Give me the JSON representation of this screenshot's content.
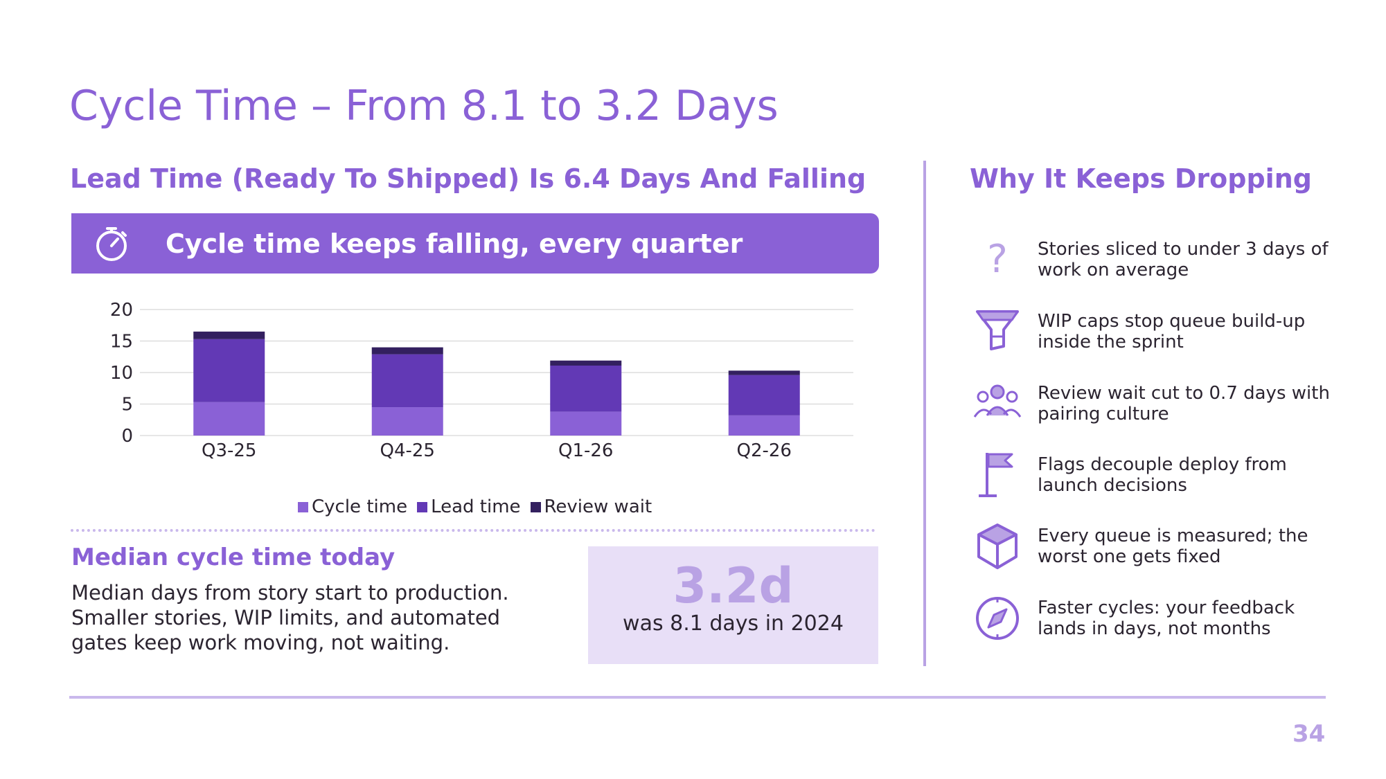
{
  "slide": {
    "title": "Cycle Time – From 8.1 to 3.2 Days",
    "page_number": "34"
  },
  "left": {
    "heading": "Lead Time (Ready To Shipped) Is 6.4 Days And Falling",
    "banner": {
      "icon": "stopwatch-icon",
      "text": "Cycle time keeps falling, every quarter"
    }
  },
  "chart_data": {
    "type": "bar",
    "stacked": true,
    "categories": [
      "Q3-25",
      "Q4-25",
      "Q1-26",
      "Q2-26"
    ],
    "series": [
      {
        "name": "Cycle time",
        "values": [
          5.3,
          4.5,
          3.8,
          3.2
        ],
        "color": "#8a61d6"
      },
      {
        "name": "Lead time",
        "values": [
          10.0,
          8.4,
          7.3,
          6.4
        ],
        "color": "#6239b5"
      },
      {
        "name": "Review wait",
        "values": [
          1.2,
          1.1,
          0.8,
          0.7
        ],
        "color": "#33205f"
      }
    ],
    "yticks": [
      0,
      5,
      10,
      15,
      20
    ],
    "ylim": [
      0,
      20
    ],
    "grid": true,
    "legend": "bottom"
  },
  "median": {
    "heading": "Median cycle time today",
    "description": "Median days from story start to production. Smaller stories, WIP limits, and automated gates keep work moving, not waiting.",
    "kpi_value": "3.2d",
    "kpi_sub": "was 8.1 days in 2024"
  },
  "right": {
    "heading": "Why It Keeps Dropping",
    "reasons": [
      {
        "icon": "question-icon",
        "text": "Stories sliced to under 3 days of work on average"
      },
      {
        "icon": "funnel-icon",
        "text": "WIP caps stop queue build-up inside the sprint"
      },
      {
        "icon": "team-icon",
        "text": "Review wait cut to 0.7 days with pairing culture"
      },
      {
        "icon": "flag-icon",
        "text": "Flags decouple deploy from launch decisions"
      },
      {
        "icon": "cube-icon",
        "text": "Every queue is measured; the worst one gets fixed"
      },
      {
        "icon": "compass-icon",
        "text": "Faster cycles: your feedback lands in days, not months"
      }
    ]
  },
  "colors": {
    "accent": "#8a61d6",
    "accent_light": "#b9a2e4",
    "panel_bg": "#e8dff7"
  }
}
